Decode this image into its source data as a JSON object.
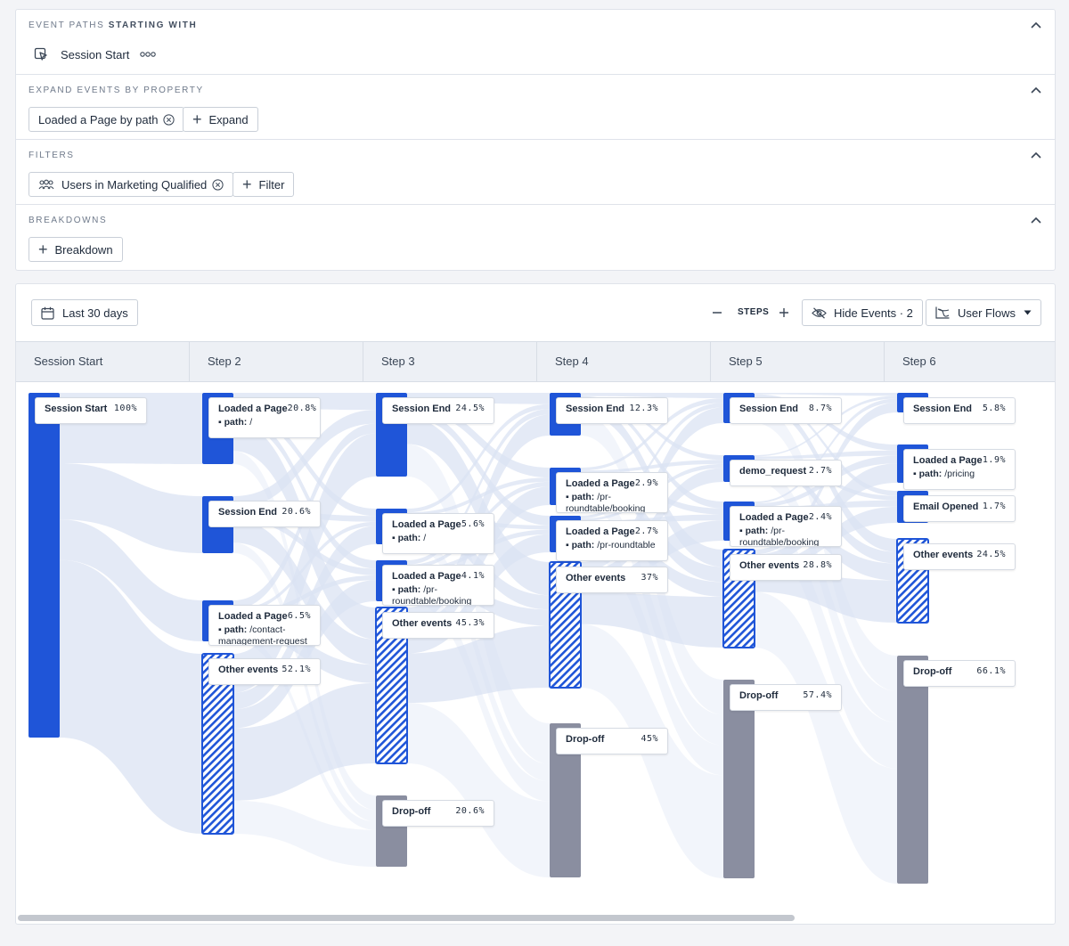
{
  "query": {
    "paths": {
      "title_prefix": "EVENT PATHS",
      "title_suffix": "STARTING WITH",
      "event": "Session Start"
    },
    "expand": {
      "title": "EXPAND EVENTS BY PROPERTY",
      "chip": "Loaded a Page by path",
      "button": "Expand"
    },
    "filters": {
      "title": "FILTERS",
      "chip": "Users in Marketing Qualified",
      "button": "Filter"
    },
    "breakdowns": {
      "title": "BREAKDOWNS",
      "button": "Breakdown"
    }
  },
  "toolbar": {
    "date_range": "Last 30 days",
    "steps_label": "STEPS",
    "hide_events": "Hide Events · 2",
    "view": "User Flows"
  },
  "columns": [
    "Session Start",
    "Step 2",
    "Step 3",
    "Step 4",
    "Step 5",
    "Step 6"
  ],
  "colors": {
    "event": "#1f55d8",
    "other": "#1f55d8",
    "dropoff": "#8a8ea0",
    "flow": "#dbe3f3"
  },
  "nodes": [
    {
      "step": 0,
      "name": "Session Start",
      "pct": "100%",
      "kind": "event"
    },
    {
      "step": 1,
      "name": "Loaded a Page",
      "pct": "20.8%",
      "prop": "path:",
      "value": "/",
      "kind": "event"
    },
    {
      "step": 1,
      "name": "Session End",
      "pct": "20.6%",
      "kind": "event"
    },
    {
      "step": 1,
      "name": "Loaded a Page",
      "pct": "6.5%",
      "prop": "path:",
      "value": "/contact-",
      "value2": "management-request",
      "kind": "event"
    },
    {
      "step": 1,
      "name": "Other events",
      "pct": "52.1%",
      "kind": "other"
    },
    {
      "step": 2,
      "name": "Session End",
      "pct": "24.5%",
      "kind": "event"
    },
    {
      "step": 2,
      "name": "Loaded a Page",
      "pct": "5.6%",
      "prop": "path:",
      "value": "/",
      "kind": "event"
    },
    {
      "step": 2,
      "name": "Loaded a Page",
      "pct": "4.1%",
      "prop": "path:",
      "value": "/pr-",
      "value2": "roundtable/booking",
      "kind": "event"
    },
    {
      "step": 2,
      "name": "Other events",
      "pct": "45.3%",
      "kind": "other"
    },
    {
      "step": 2,
      "name": "Drop-off",
      "pct": "20.6%",
      "kind": "dropoff"
    },
    {
      "step": 3,
      "name": "Session End",
      "pct": "12.3%",
      "kind": "event"
    },
    {
      "step": 3,
      "name": "Loaded a Page",
      "pct": "2.9%",
      "prop": "path:",
      "value": "/pr-",
      "value2": "roundtable/booking",
      "kind": "event"
    },
    {
      "step": 3,
      "name": "Loaded a Page",
      "pct": "2.7%",
      "prop": "path:",
      "value": "/pr-roundtable",
      "kind": "event"
    },
    {
      "step": 3,
      "name": "Other events",
      "pct": "37%",
      "kind": "other"
    },
    {
      "step": 3,
      "name": "Drop-off",
      "pct": "45%",
      "kind": "dropoff"
    },
    {
      "step": 4,
      "name": "Session End",
      "pct": "8.7%",
      "kind": "event"
    },
    {
      "step": 4,
      "name": "demo_request",
      "pct": "2.7%",
      "kind": "event"
    },
    {
      "step": 4,
      "name": "Loaded a Page",
      "pct": "2.4%",
      "prop": "path:",
      "value": "/pr-",
      "value2": "roundtable/booking",
      "kind": "event"
    },
    {
      "step": 4,
      "name": "Other events",
      "pct": "28.8%",
      "kind": "other"
    },
    {
      "step": 4,
      "name": "Drop-off",
      "pct": "57.4%",
      "kind": "dropoff"
    },
    {
      "step": 5,
      "name": "Session End",
      "pct": "5.8%",
      "kind": "event"
    },
    {
      "step": 5,
      "name": "Loaded a Page",
      "pct": "1.9%",
      "prop": "path:",
      "value": "/pricing",
      "kind": "event"
    },
    {
      "step": 5,
      "name": "Email Opened",
      "pct": "1.7%",
      "kind": "event"
    },
    {
      "step": 5,
      "name": "Other events",
      "pct": "24.5%",
      "kind": "other"
    },
    {
      "step": 5,
      "name": "Drop-off",
      "pct": "66.1%",
      "kind": "dropoff"
    }
  ]
}
